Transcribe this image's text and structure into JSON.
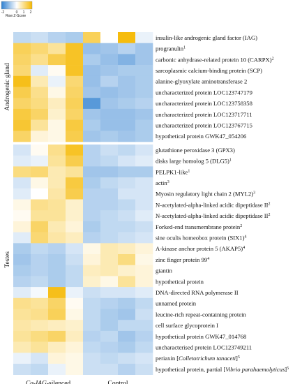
{
  "chart_data": {
    "type": "heatmap",
    "title": "",
    "color_key": {
      "title": "Row Z-Score",
      "ticks": [
        "-2",
        "0",
        "1",
        "2"
      ],
      "low_color": "#2e7fd0",
      "mid_color": "#ffffff",
      "high_color": "#f5b800"
    },
    "column_groups": [
      "Cq-IAG-silenced",
      "Control"
    ],
    "row_groups": [
      "Androgenic gland",
      "Testes"
    ],
    "rows": [
      {
        "label": "insulin-like androgenic gland factor (IAG)",
        "sup": "",
        "group": "Androgenic gland",
        "values": [
          -0.6,
          -0.5,
          -0.7,
          -0.8,
          1.3,
          0.0,
          1.9,
          -0.2
        ]
      },
      {
        "label": "progranulin",
        "sup": "1",
        "group": "Androgenic gland",
        "values": [
          1.3,
          1.1,
          0.8,
          1.7,
          -1.0,
          -0.9,
          -0.7,
          -0.9
        ]
      },
      {
        "label": "carbonic anhydrase-related protein 10 (CARPX)",
        "sup": "2",
        "group": "Androgenic gland",
        "values": [
          1.2,
          0.9,
          1.4,
          1.7,
          -0.8,
          -1.0,
          -1.2,
          -0.9
        ]
      },
      {
        "label": "sarcoplasmic calcium-binding protein (SCP)",
        "sup": "",
        "group": "Androgenic gland",
        "values": [
          1.1,
          -0.3,
          0.1,
          1.7,
          -1.0,
          -0.9,
          -0.8,
          -0.8
        ]
      },
      {
        "label": "alanine-glyoxylate aminotransferase 2",
        "sup": "",
        "group": "Androgenic gland",
        "values": [
          1.8,
          0.6,
          -0.2,
          1.1,
          -1.0,
          -0.7,
          -0.9,
          -0.8
        ]
      },
      {
        "label": "uncharacterized protein LOC123747179",
        "sup": "",
        "group": "Androgenic gland",
        "values": [
          1.4,
          0.9,
          0.2,
          1.2,
          -0.9,
          -1.0,
          -0.9,
          -0.8
        ]
      },
      {
        "label": "uncharacterized protein LOC123758358",
        "sup": "",
        "group": "Androgenic gland",
        "values": [
          1.2,
          1.0,
          0.5,
          1.3,
          -1.6,
          -0.9,
          -0.8,
          -0.7
        ]
      },
      {
        "label": "uncharacterized protein LOC123717711",
        "sup": "",
        "group": "Androgenic gland",
        "values": [
          1.5,
          1.2,
          0.4,
          1.2,
          -0.9,
          -1.0,
          -1.0,
          -0.9
        ]
      },
      {
        "label": "uncharacterized protein LOC123767715",
        "sup": "",
        "group": "Androgenic gland",
        "values": [
          1.6,
          0.8,
          0.2,
          1.5,
          -0.8,
          -1.0,
          -1.0,
          -0.8
        ]
      },
      {
        "label": "hypothetical protein GWK47_054206",
        "sup": "",
        "group": "Androgenic gland",
        "values": [
          1.2,
          0.3,
          0.2,
          1.4,
          -0.9,
          -0.8,
          -0.9,
          -0.8
        ]
      },
      {
        "label": "glutathione peroxidase 3 (GPX3)",
        "sup": "",
        "group": "Testes",
        "values": [
          -0.4,
          0.1,
          0.9,
          1.7,
          -0.7,
          -0.5,
          -0.6,
          -0.4
        ]
      },
      {
        "label": "disks large homolog 5 (DLG5)",
        "sup": "1",
        "group": "Testes",
        "values": [
          -0.3,
          -0.2,
          0.8,
          1.4,
          -0.7,
          -0.6,
          -0.4,
          -0.3
        ]
      },
      {
        "label": "PELPK1-like",
        "sup": "1",
        "group": "Testes",
        "values": [
          1.0,
          1.1,
          0.6,
          0.8,
          -0.9,
          -0.9,
          -0.8,
          -0.8
        ]
      },
      {
        "label": "actin",
        "sup": "3",
        "group": "Testes",
        "values": [
          -0.4,
          0.2,
          0.6,
          1.5,
          -0.8,
          -0.6,
          -0.5,
          -0.4
        ]
      },
      {
        "label": "Myosin regulatory light chain 2 (MYL2)",
        "sup": "3",
        "group": "Testes",
        "values": [
          -0.3,
          0.0,
          0.7,
          1.4,
          -0.7,
          -0.7,
          -0.4,
          -0.4
        ]
      },
      {
        "label": "N-acetylated-alpha-linked acidic dipeptidase II",
        "sup": "2",
        "group": "Testes",
        "values": [
          0.2,
          0.9,
          0.8,
          0.4,
          -0.7,
          -0.7,
          -0.6,
          -0.4
        ]
      },
      {
        "label": "N-acetylated-alpha-linked acidic dipeptidase II",
        "sup": "2",
        "group": "Testes",
        "values": [
          0.1,
          0.8,
          0.8,
          0.4,
          -0.7,
          -0.6,
          -0.5,
          -0.3
        ]
      },
      {
        "label": "Forked-end transmembrane protein",
        "sup": "2",
        "group": "Testes",
        "values": [
          0.3,
          1.2,
          0.6,
          0.3,
          -0.8,
          -0.6,
          -0.6,
          -0.5
        ]
      },
      {
        "label": "sine oculis homeobox protein (SIX1)",
        "sup": "4",
        "group": "Testes",
        "values": [
          -0.3,
          1.1,
          0.7,
          0.5,
          -0.7,
          -0.6,
          -0.5,
          -0.4
        ]
      },
      {
        "label": "A-kinase anchor protein 5 (AKAP5)",
        "sup": "4",
        "group": "Testes",
        "values": [
          -0.8,
          -0.6,
          -0.7,
          -0.4,
          0.2,
          0.6,
          0.5,
          0.3
        ]
      },
      {
        "label": "zinc finger protein 99",
        "sup": "4",
        "group": "Testes",
        "values": [
          -0.9,
          -0.7,
          -0.8,
          -0.5,
          0.3,
          0.6,
          1.0,
          0.2
        ]
      },
      {
        "label": "giantin",
        "sup": "",
        "group": "Testes",
        "values": [
          -0.8,
          -0.7,
          -0.8,
          -0.6,
          0.5,
          0.6,
          0.4,
          0.3
        ]
      },
      {
        "label": "hypothetical protein",
        "sup": "",
        "group": "Testes",
        "values": [
          -0.7,
          -0.6,
          -0.8,
          -0.6,
          0.4,
          0.2,
          0.8,
          0.3
        ]
      },
      {
        "label": "DNA-directed RNA polymerase II",
        "sup": "",
        "group": "Testes",
        "values": [
          -0.3,
          -0.1,
          1.8,
          -0.2,
          -0.5,
          -0.4,
          -0.4,
          -0.3
        ]
      },
      {
        "label": "unnamed protein",
        "sup": "",
        "group": "Testes",
        "values": [
          0.9,
          0.8,
          1.2,
          0.1,
          -0.6,
          -0.7,
          -0.8,
          -0.6
        ]
      },
      {
        "label": "leucine-rich repeat-containing protein",
        "sup": "",
        "group": "Testes",
        "values": [
          0.8,
          0.9,
          1.3,
          0.2,
          -0.6,
          -0.8,
          -0.9,
          -0.5
        ]
      },
      {
        "label": "cell surface glycoprotein I",
        "sup": "",
        "group": "Testes",
        "values": [
          0.7,
          0.6,
          0.5,
          0.4,
          -0.6,
          -0.8,
          -0.6,
          -0.6
        ]
      },
      {
        "label": "hypothetical protein GWK47_014768",
        "sup": "",
        "group": "Testes",
        "values": [
          0.8,
          1.0,
          1.2,
          0.5,
          -0.7,
          -0.6,
          -0.9,
          -0.7
        ]
      },
      {
        "label": "uncharacterised protein LOC123749211",
        "sup": "",
        "group": "Testes",
        "values": [
          0.6,
          0.8,
          0.5,
          0.3,
          -0.6,
          -0.7,
          -0.8,
          -0.6
        ]
      },
      {
        "label": "periaxin [Colletotrichum tanaceti]",
        "sup": "5",
        "group": "Testes",
        "values": [
          -0.2,
          -0.4,
          0.3,
          0.2,
          -0.5,
          -0.6,
          -0.5,
          -0.4
        ]
      },
      {
        "label": "hypothetical protein, partial [Vibrio parahaemolyticus]",
        "sup": "5",
        "group": "Testes",
        "values": [
          -0.5,
          -0.6,
          -0.2,
          0.2,
          -0.5,
          -0.5,
          -0.7,
          -0.5
        ]
      }
    ]
  }
}
